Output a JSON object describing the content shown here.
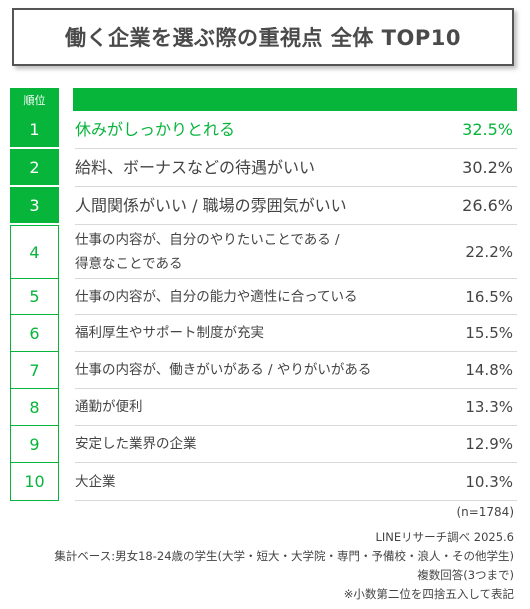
{
  "title": "働く企業を選ぶ際の重視点 全体 TOP10",
  "header": {
    "rank_label": "順位"
  },
  "chart_data": {
    "type": "table",
    "title": "働く企業を選ぶ際の重視点 全体 TOP10",
    "ranks": [
      "1",
      "2",
      "3",
      "4",
      "5",
      "6",
      "7",
      "8",
      "9",
      "10"
    ],
    "categories": [
      "休みがしっかりとれる",
      "給料、ボーナスなどの待遇がいい",
      "人間関係がいい / 職場の雰囲気がいい",
      "仕事の内容が、自分のやりたいことである / 得意なことである",
      "仕事の内容が、自分の能力や適性に合っている",
      "福利厚生やサポート制度が充実",
      "仕事の内容が、働きがいがある / やりがいがある",
      "通勤が便利",
      "安定した業界の企業",
      "大企業"
    ],
    "values": [
      32.5,
      30.2,
      26.6,
      22.2,
      16.5,
      15.5,
      14.8,
      13.3,
      12.9,
      10.3
    ],
    "value_labels": [
      "32.5%",
      "30.2%",
      "26.6%",
      "22.2%",
      "16.5%",
      "15.5%",
      "14.8%",
      "13.3%",
      "12.9%",
      "10.3%"
    ],
    "accent_color": "#07b53b"
  },
  "rows_display": [
    {
      "line1": "休みがしっかりとれる",
      "line2": ""
    },
    {
      "line1": "給料、ボーナスなどの待遇がいい",
      "line2": ""
    },
    {
      "line1": "人間関係がいい / 職場の雰囲気がいい",
      "line2": ""
    },
    {
      "line1": "仕事の内容が、自分のやりたいことである /",
      "line2": "得意なことである"
    },
    {
      "line1": "仕事の内容が、自分の能力や適性に合っている",
      "line2": ""
    },
    {
      "line1": "福利厚生やサポート制度が充実",
      "line2": ""
    },
    {
      "line1": "仕事の内容が、働きがいがある / やりがいがある",
      "line2": ""
    },
    {
      "line1": "通勤が便利",
      "line2": ""
    },
    {
      "line1": "安定した業界の企業",
      "line2": ""
    },
    {
      "line1": "大企業",
      "line2": ""
    }
  ],
  "notes": {
    "sample": "(n=1784)",
    "source": "LINEリサーチ調べ 2025.6",
    "base": "集計ベース:男女18-24歳の学生(大学・短大・大学院・専門・予備校・浪人・その他学生)",
    "answer": "複数回答(3つまで)",
    "rounding": "※小数第二位を四捨五入して表記"
  }
}
